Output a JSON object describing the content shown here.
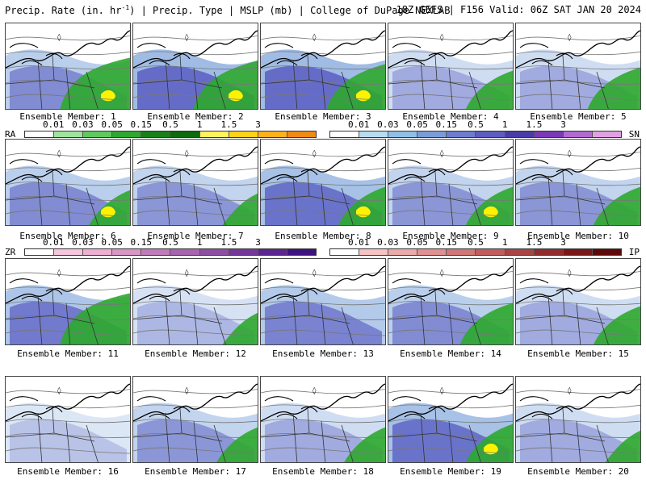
{
  "header": {
    "title_prefix": "Precip. Rate (in. hr",
    "title_sup": "-1",
    "title_suffix": ") | Precip. Type | MSLP (mb) | College of DuPage NEXLAB",
    "run_info": "18Z GEFS | F156 Valid: 06Z SAT JAN 20 2024"
  },
  "legends": {
    "rain": {
      "code": "RA",
      "ticks": [
        "0.01",
        "0.03",
        "0.05",
        "0.15",
        "0.5",
        "1",
        "1.5",
        "3"
      ],
      "colors": [
        "#ffffff",
        "#9ee39e",
        "#5ec95e",
        "#2ea82e",
        "#188018",
        "#0e6a0e",
        "#fff25a",
        "#ffd21a",
        "#ffb01a",
        "#f08a14"
      ]
    },
    "snow": {
      "code": "SN",
      "ticks": [
        "0.01",
        "0.03",
        "0.05",
        "0.15",
        "0.5",
        "1",
        "1.5",
        "3"
      ],
      "colors": [
        "#ffffff",
        "#b7dcf2",
        "#8fc0e6",
        "#7b9bd8",
        "#6d7ccd",
        "#5d5cc0",
        "#4a3ba8",
        "#7a3ab8",
        "#b26ad0",
        "#e1a0e2"
      ]
    },
    "freezing_rain": {
      "code": "ZR",
      "ticks": [
        "0.01",
        "0.03",
        "0.05",
        "0.15",
        "0.5",
        "1",
        "1.5",
        "3"
      ],
      "colors": [
        "#ffffff",
        "#f6c6de",
        "#eeb0d2",
        "#d895c6",
        "#c07cba",
        "#a765b0",
        "#8e4ea6",
        "#74389c",
        "#5a2590",
        "#3e1280"
      ]
    },
    "ice_pellets": {
      "code": "IP",
      "ticks": [
        "0.01",
        "0.03",
        "0.05",
        "0.15",
        "0.5",
        "1",
        "1.5",
        "3"
      ],
      "colors": [
        "#ffffff",
        "#f6c2c2",
        "#ecaaaa",
        "#e09090",
        "#d07676",
        "#c05e5e",
        "#a84444",
        "#902c2c",
        "#781818",
        "#600808"
      ]
    }
  },
  "members": [
    {
      "label": "Ensemble Member: 1"
    },
    {
      "label": "Ensemble Member: 2"
    },
    {
      "label": "Ensemble Member: 3"
    },
    {
      "label": "Ensemble Member: 4"
    },
    {
      "label": "Ensemble Member: 5"
    },
    {
      "label": "Ensemble Member: 6"
    },
    {
      "label": "Ensemble Member: 7"
    },
    {
      "label": "Ensemble Member: 8"
    },
    {
      "label": "Ensemble Member: 9"
    },
    {
      "label": "Ensemble Member: 10"
    },
    {
      "label": "Ensemble Member: 11"
    },
    {
      "label": "Ensemble Member: 12"
    },
    {
      "label": "Ensemble Member: 13"
    },
    {
      "label": "Ensemble Member: 14"
    },
    {
      "label": "Ensemble Member: 15"
    },
    {
      "label": "Ensemble Member: 16"
    },
    {
      "label": "Ensemble Member: 17"
    },
    {
      "label": "Ensemble Member: 18"
    },
    {
      "label": "Ensemble Member: 19"
    },
    {
      "label": "Ensemble Member: 20"
    }
  ]
}
